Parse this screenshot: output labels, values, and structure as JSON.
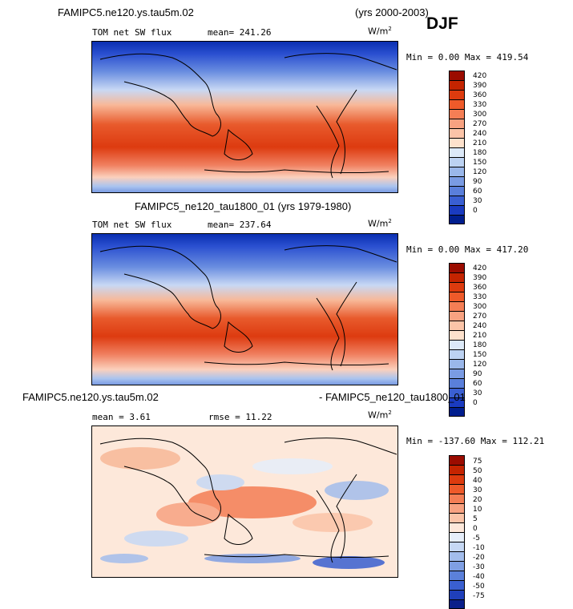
{
  "panel1": {
    "case_title": "FAMIPC5.ne120.ys.tau5m.02",
    "years": "(yrs 2000-2003)",
    "season": "DJF",
    "variable": "TOM net SW flux",
    "mean_label": "mean= 241.26",
    "units": "W/m",
    "units_exp": "2",
    "minmax": "Min =   0.00 Max = 419.54",
    "colorbar_labels": [
      "420",
      "390",
      "360",
      "330",
      "300",
      "270",
      "240",
      "210",
      "180",
      "150",
      "120",
      "90",
      "60",
      "30",
      "0"
    ],
    "colorbar_colors": [
      "#9b0c00",
      "#c42400",
      "#dd3b0e",
      "#ee5a2a",
      "#f47e55",
      "#f8a281",
      "#fbc4a8",
      "#fde1cc",
      "#dce9f8",
      "#bcd2f2",
      "#9ab7ea",
      "#7a9be3",
      "#5a7fdb",
      "#3a5fd2",
      "#1a3bc0",
      "#001e8e"
    ]
  },
  "panel2": {
    "case_title": "FAMIPC5_ne120_tau1800_01 (yrs 1979-1980)",
    "variable": "TOM net SW flux",
    "mean_label": "mean= 237.64",
    "units": "W/m",
    "units_exp": "2",
    "minmax": "Min =   0.00 Max = 417.20",
    "colorbar_labels": [
      "420",
      "390",
      "360",
      "330",
      "300",
      "270",
      "240",
      "210",
      "180",
      "150",
      "120",
      "90",
      "60",
      "30",
      "0"
    ],
    "colorbar_colors": [
      "#9b0c00",
      "#c42400",
      "#dd3b0e",
      "#ee5a2a",
      "#f47e55",
      "#f8a281",
      "#fbc4a8",
      "#fde1cc",
      "#dce9f8",
      "#bcd2f2",
      "#9ab7ea",
      "#7a9be3",
      "#5a7fdb",
      "#3a5fd2",
      "#1a3bc0",
      "#001e8e"
    ]
  },
  "panel3": {
    "case_title_left": "FAMIPC5.ne120.ys.tau5m.02",
    "case_title_right": "- FAMIPC5_ne120_tau1800_01",
    "mean_label": "mean =    3.61",
    "rmse_label": "rmse =   11.22",
    "units": "W/m",
    "units_exp": "2",
    "minmax": "Min = -137.60 Max = 112.21",
    "colorbar_labels": [
      "75",
      "50",
      "40",
      "30",
      "20",
      "10",
      "5",
      "0",
      "-5",
      "-10",
      "-20",
      "-30",
      "-40",
      "-50",
      "-75"
    ],
    "colorbar_colors": [
      "#9b0c00",
      "#c42400",
      "#dd3b0e",
      "#ee5a2a",
      "#f47e55",
      "#f8a281",
      "#fbc4a8",
      "#fde8da",
      "#e6eefa",
      "#c6d8f4",
      "#a3bdec",
      "#7f9fe3",
      "#5b80da",
      "#3a5fd0",
      "#1f3fba",
      "#0a1f8a"
    ]
  }
}
